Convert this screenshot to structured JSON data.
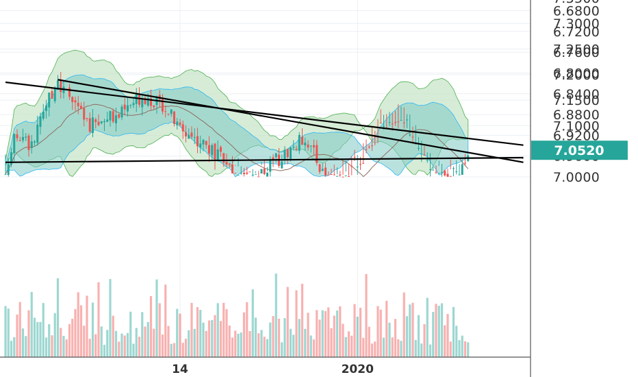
{
  "chart_data": {
    "type": "candlestick",
    "ylim": [
      6.66,
      7.37
    ],
    "y_ticks": [
      {
        "value": 7.35,
        "label": "7.3500"
      },
      {
        "value": 7.3,
        "label": "7.3000"
      },
      {
        "value": 7.25,
        "label": "7.2500"
      },
      {
        "value": 7.2,
        "label": "7.2000"
      },
      {
        "value": 7.15,
        "label": "7.1500"
      },
      {
        "value": 7.1,
        "label": "7.1000"
      },
      {
        "value": 7.0,
        "label": "7.0000"
      },
      {
        "value": 6.96,
        "label": "6.9600"
      },
      {
        "value": 6.92,
        "label": "6.9200"
      },
      {
        "value": 6.88,
        "label": "6.8800"
      },
      {
        "value": 6.84,
        "label": "6.8400"
      },
      {
        "value": 6.8,
        "label": "6.8000"
      },
      {
        "value": 6.76,
        "label": "6.7600"
      },
      {
        "value": 6.72,
        "label": "6.7200"
      },
      {
        "value": 6.68,
        "label": "6.6800"
      }
    ],
    "x_ticks": [
      {
        "bar": 60,
        "label": "14"
      },
      {
        "bar": 121,
        "label": "2020"
      }
    ],
    "last_price": {
      "value": 7.052,
      "label": "7.0520"
    },
    "bar_count": 160,
    "grid": true,
    "bullish_color": "#26a69a",
    "bearish_color": "#ef5350",
    "trendlines": [
      {
        "from": {
          "bar": 0,
          "value": 7.185
        },
        "to": {
          "bar": 178,
          "value": 7.062
        }
      },
      {
        "from": {
          "bar": 18,
          "value": 7.19
        },
        "to": {
          "bar": 178,
          "value": 6.972
        }
      },
      {
        "from": {
          "bar": 0,
          "value": 6.972
        },
        "to": {
          "bar": 178,
          "value": 6.963
        }
      }
    ]
  }
}
